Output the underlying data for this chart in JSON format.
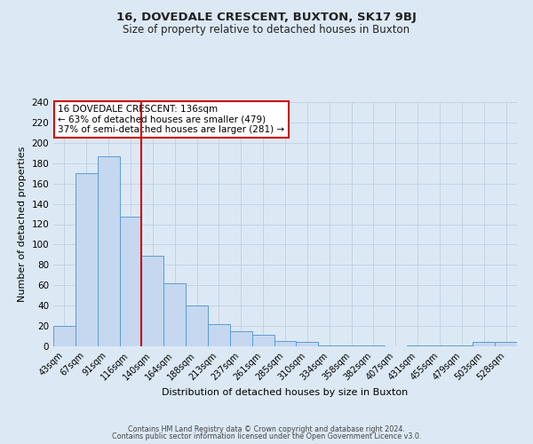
{
  "title": "16, DOVEDALE CRESCENT, BUXTON, SK17 9BJ",
  "subtitle": "Size of property relative to detached houses in Buxton",
  "xlabel": "Distribution of detached houses by size in Buxton",
  "ylabel": "Number of detached properties",
  "bar_labels": [
    "43sqm",
    "67sqm",
    "91sqm",
    "116sqm",
    "140sqm",
    "164sqm",
    "188sqm",
    "213sqm",
    "237sqm",
    "261sqm",
    "285sqm",
    "310sqm",
    "334sqm",
    "358sqm",
    "382sqm",
    "407sqm",
    "431sqm",
    "455sqm",
    "479sqm",
    "503sqm",
    "528sqm"
  ],
  "bar_values": [
    20,
    170,
    187,
    127,
    89,
    62,
    40,
    22,
    15,
    11,
    5,
    4,
    1,
    1,
    1,
    0,
    1,
    1,
    1,
    4,
    4
  ],
  "bar_color": "#c5d8f0",
  "bar_edge_color": "#5b9bd5",
  "vline_x_idx": 4,
  "vline_color": "#cc0000",
  "annotation_title": "16 DOVEDALE CRESCENT: 136sqm",
  "annotation_line1": "← 63% of detached houses are smaller (479)",
  "annotation_line2": "37% of semi-detached houses are larger (281) →",
  "annotation_box_color": "#ffffff",
  "annotation_box_edge": "#cc0000",
  "grid_color": "#c0cfe0",
  "background_color": "#dce9f5",
  "ylim": [
    0,
    240
  ],
  "yticks": [
    0,
    20,
    40,
    60,
    80,
    100,
    120,
    140,
    160,
    180,
    200,
    220,
    240
  ],
  "footer1": "Contains HM Land Registry data © Crown copyright and database right 2024.",
  "footer2": "Contains public sector information licensed under the Open Government Licence v3.0."
}
